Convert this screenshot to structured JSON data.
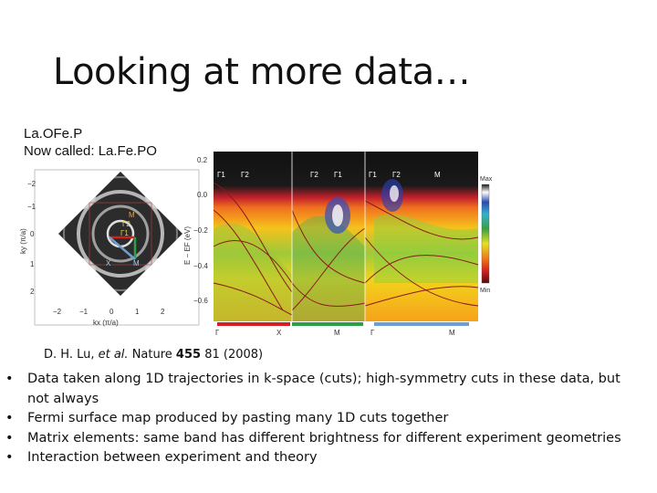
{
  "slide": {
    "title": "Looking at more data…",
    "label_line1": "La.OFe.P",
    "label_line2": "Now called: La.Fe.PO",
    "citation": {
      "authors": "D. H. Lu, ",
      "etal": "et al.",
      "journal": " Nature ",
      "volume": "455",
      "rest": " 81 (2008)"
    },
    "bullets": [
      "Data taken along 1D trajectories in k-space (cuts); high-symmetry cuts in these data, but not always",
      "Fermi surface map produced by pasting many 1D cuts together",
      "Matrix elements: same band has different brightness for different experiment geometries",
      " Interaction between experiment and theory"
    ]
  },
  "fermi_map": {
    "y_ticks": [
      "−2",
      "−1",
      "0",
      "1",
      "2"
    ],
    "x_ticks": [
      "−2",
      "−1",
      "0",
      "1",
      "2"
    ],
    "xlabel": "kx (π/a)",
    "ylabel": "ky (π/a)",
    "point_labels": [
      "M",
      "Γ2",
      "Γ1",
      "X",
      "M"
    ]
  },
  "band_map": {
    "y_ticks": [
      "0.2",
      "0.0",
      "−0.2",
      "−0.4",
      "−0.6"
    ],
    "ylabel": "E − EF (eV)",
    "top_labels": [
      "Γ1",
      "Γ2",
      "Γ2",
      "Γ1",
      "Γ1",
      "Γ2",
      "M"
    ],
    "bottom_labels": [
      "Γ",
      "X",
      "M",
      "Γ",
      "M"
    ],
    "colorbar_max": "Max",
    "colorbar_min": "Min"
  },
  "colors": {
    "cut_red": "#d42020",
    "cut_green": "#2aa04a",
    "cut_blue": "#6f9fd0"
  }
}
